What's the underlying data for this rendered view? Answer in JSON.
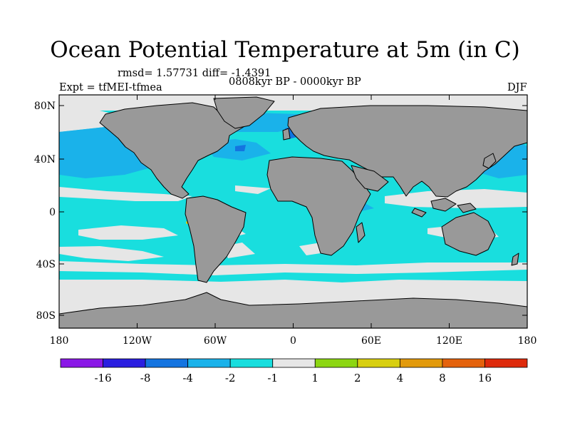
{
  "title": "Ocean Potential Temperature at 5m (in C)",
  "stats": "rmsd= 1.57731  diff= -1.4391",
  "period": "0808kyr BP - 0000kyr BP",
  "experiment": "Expt = tfMEI-tfmea",
  "season": "DJF",
  "map": {
    "projection": "cylindrical-equidistant",
    "lon_range": [
      -180,
      180
    ],
    "lat_range": [
      -90,
      90
    ],
    "lon_tick_labels": [
      "180",
      "120W",
      "60W",
      "0",
      "60E",
      "120E",
      "180"
    ],
    "lat_tick_labels": [
      "80N",
      "40N",
      "0",
      "40S",
      "80S"
    ],
    "land_color": "#999999"
  },
  "colorbar": {
    "labels": [
      "-16",
      "-8",
      "-4",
      "-2",
      "-1",
      "1",
      "2",
      "4",
      "8",
      "16"
    ],
    "colors": [
      "#8a18e6",
      "#2a1ee0",
      "#1474e0",
      "#1ab2ea",
      "#19dede",
      "#e6e6e6",
      "#8cd612",
      "#d8cf10",
      "#e29a0c",
      "#e4620c",
      "#de2a0c"
    ]
  }
}
